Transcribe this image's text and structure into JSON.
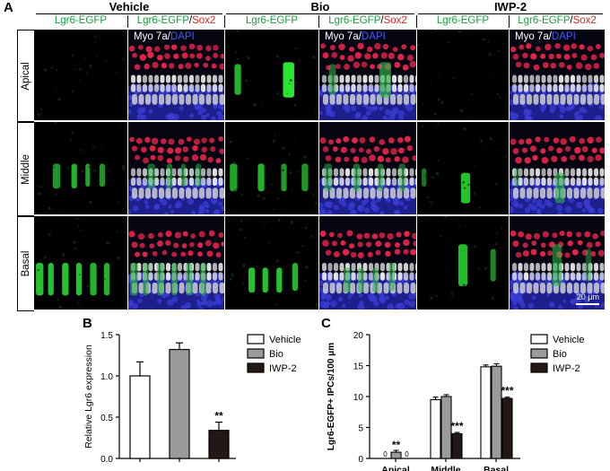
{
  "panels": {
    "a": "A",
    "b": "B",
    "c": "C"
  },
  "groups": [
    "Vehicle",
    "Bio",
    "IWP-2"
  ],
  "columns": {
    "egfp": "Lgr6-EGFP",
    "merged_green": "Lgr6-EGFP",
    "merged_sep": "/",
    "merged_red": "Sox2"
  },
  "rows": [
    "Apical",
    "Middle",
    "Basal"
  ],
  "overlay": {
    "myo": "Myo 7a",
    "sep": "/",
    "dapi": "DAPI"
  },
  "scale_bar": "20 μm",
  "colors": {
    "egfp": "#1a9c3c",
    "sox2": "#d8261e",
    "dapi": "#3d5cff",
    "vehicle": "#ffffff",
    "bio": "#9b9b9b",
    "iwp2": "#231815"
  },
  "chart_data": [
    {
      "panel": "B",
      "type": "bar",
      "categories": [
        "Vehicle",
        "Bio",
        "IWP-2"
      ],
      "values": [
        1.0,
        1.32,
        0.34
      ],
      "errors": [
        0.17,
        0.08,
        0.1
      ],
      "ylabel": "Relative Lgr6 expression",
      "ylim": [
        0,
        1.5
      ],
      "yticks": [
        "0.0",
        "0.5",
        "1.0",
        "1.5"
      ],
      "annotations": [
        {
          "category": "IWP-2",
          "text": "**"
        }
      ],
      "legend": [
        "Vehicle",
        "Bio",
        "IWP-2"
      ],
      "legend_position": "top-right"
    },
    {
      "panel": "C",
      "type": "bar",
      "categories": [
        "Apical",
        "Middle",
        "Basal"
      ],
      "series": [
        {
          "name": "Vehicle",
          "values": [
            0,
            9.5,
            14.8
          ],
          "errors": [
            0,
            0.4,
            0.3
          ]
        },
        {
          "name": "Bio",
          "values": [
            1.0,
            10.0,
            14.9
          ],
          "errors": [
            0.3,
            0.3,
            0.4
          ]
        },
        {
          "name": "IWP-2",
          "values": [
            0,
            4.0,
            9.7
          ],
          "errors": [
            0,
            0.2,
            0.2
          ]
        }
      ],
      "ylabel": "Lgr6-EGFP+ IPCs/100 μm",
      "ylim": [
        0,
        20
      ],
      "yticks": [
        "0",
        "5",
        "10",
        "15",
        "20"
      ],
      "zero_labels": [
        "0",
        "0"
      ],
      "annotations": [
        {
          "category": "Apical",
          "text": "**"
        },
        {
          "category": "Middle",
          "text": "***"
        },
        {
          "category": "Basal",
          "text": "***"
        }
      ],
      "legend": [
        "Vehicle",
        "Bio",
        "IWP-2"
      ],
      "legend_position": "top-right"
    }
  ]
}
